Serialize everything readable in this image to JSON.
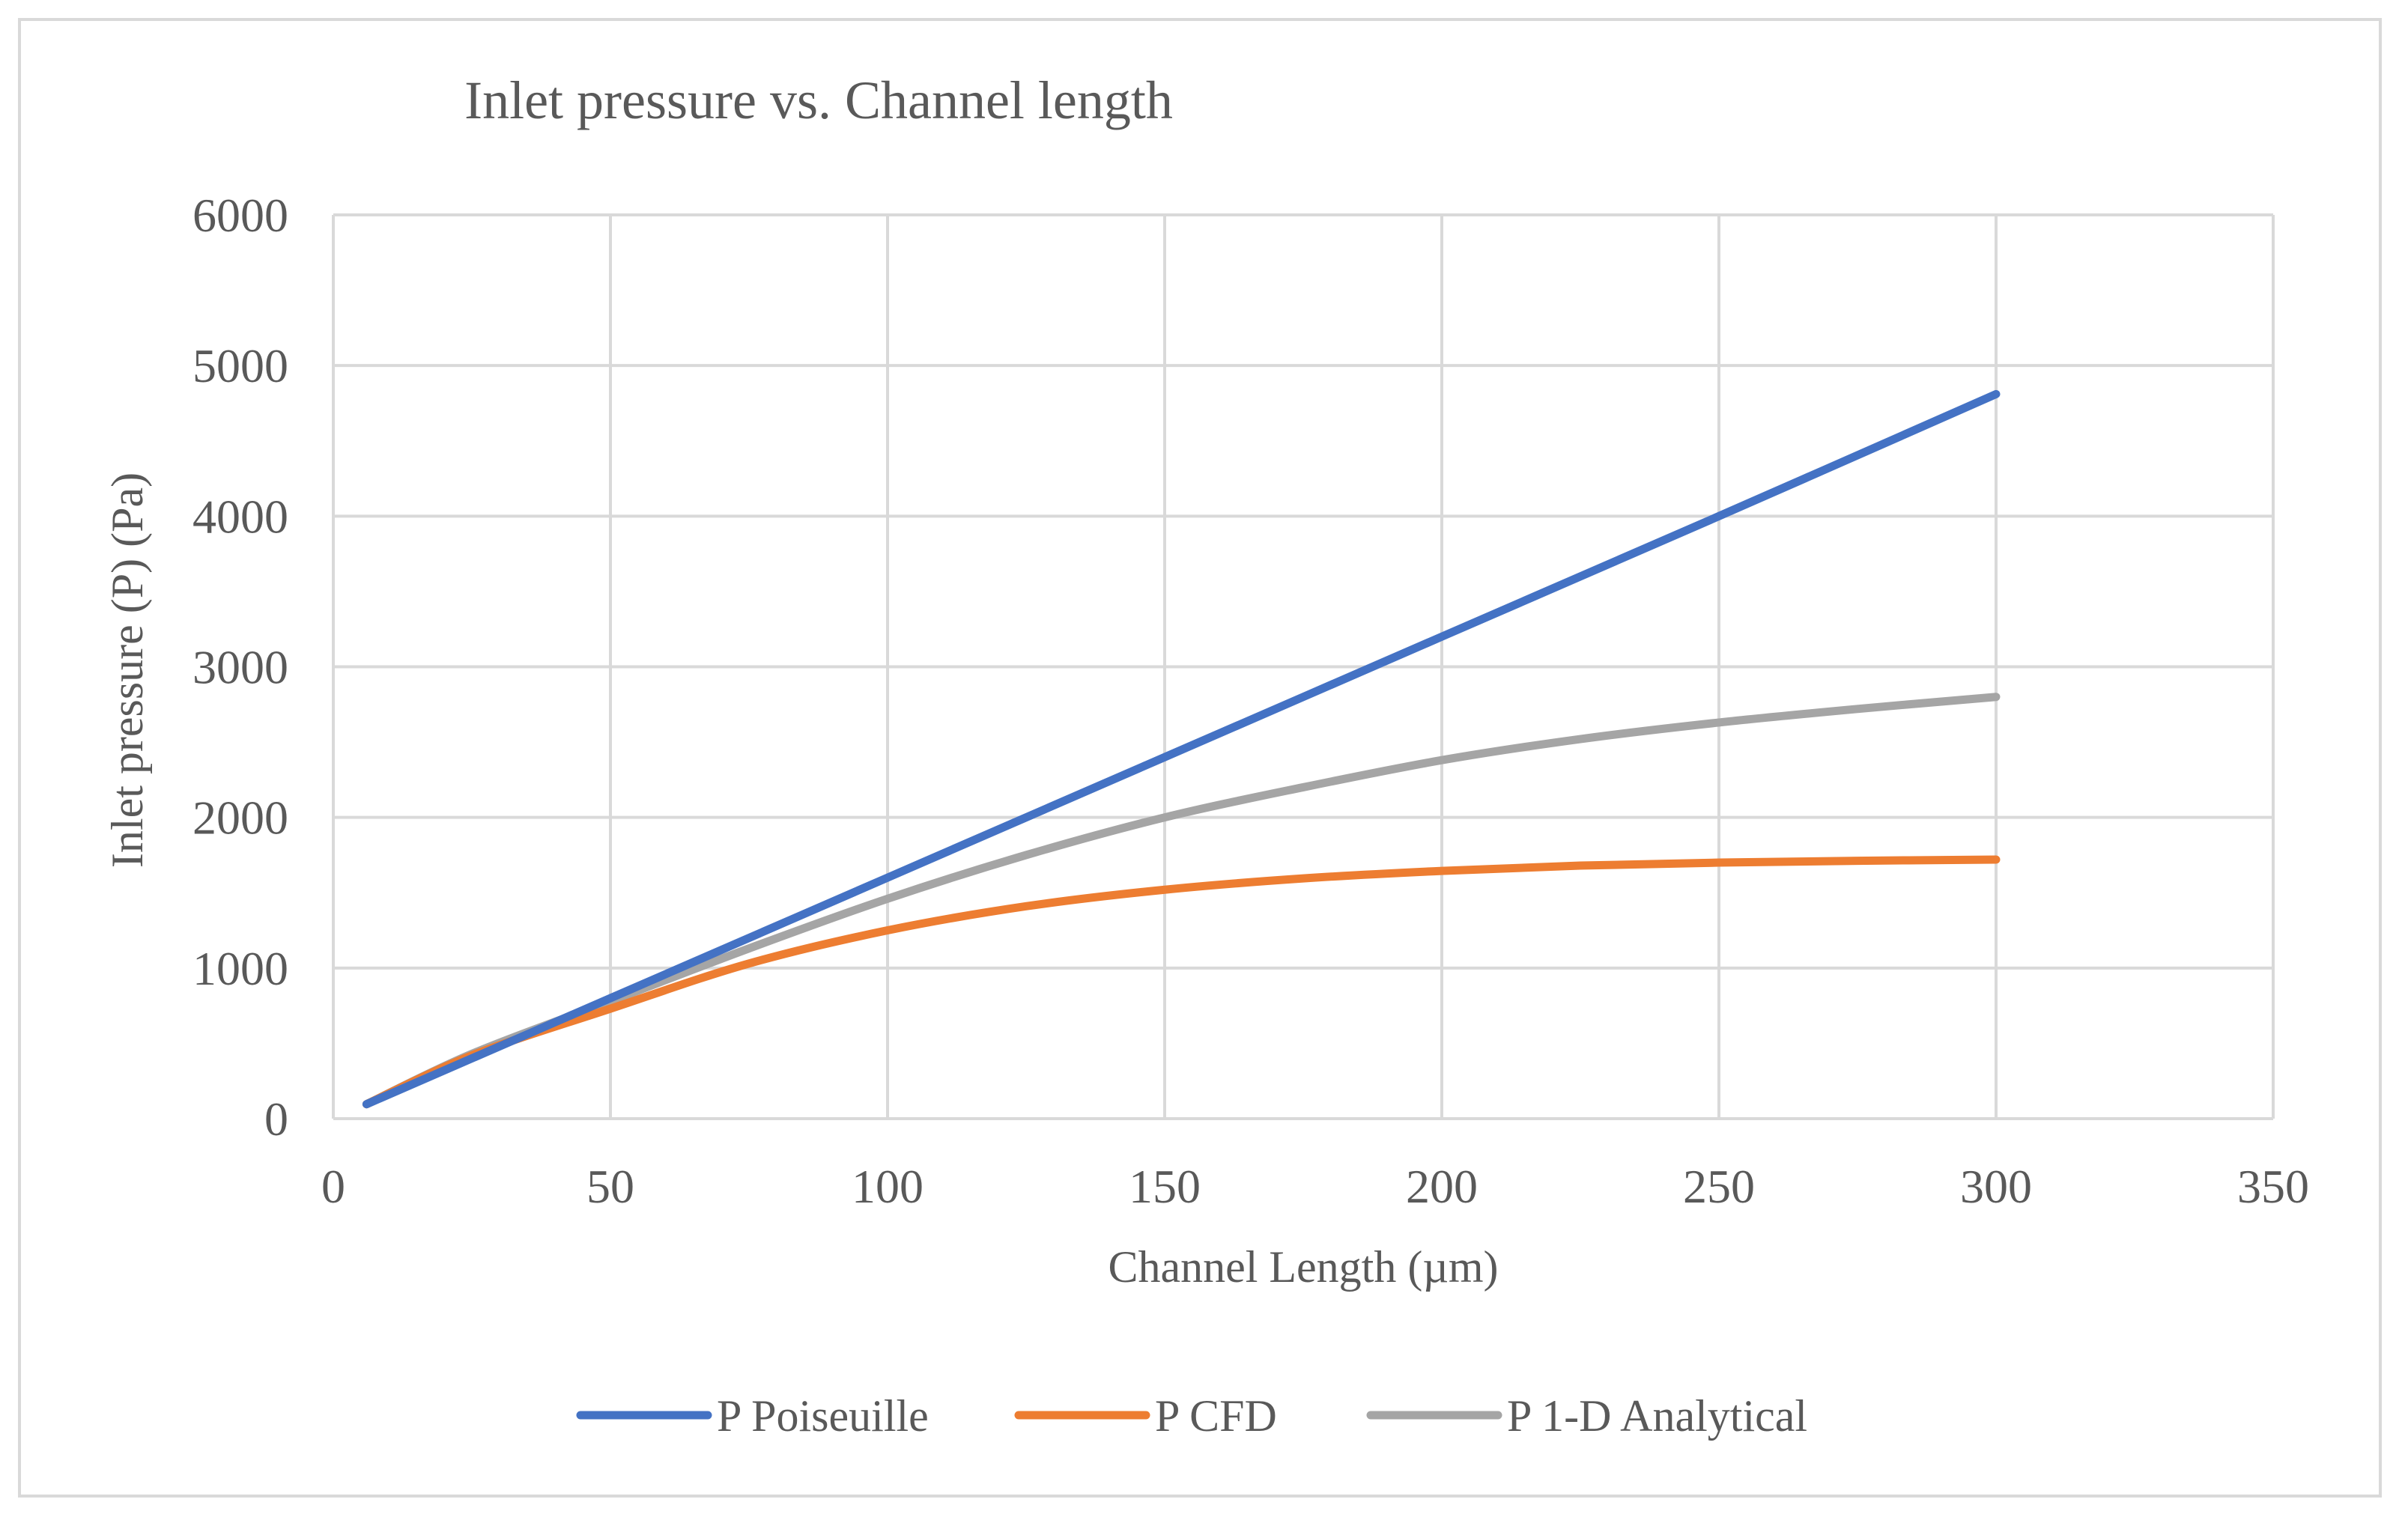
{
  "chart_data": {
    "type": "line",
    "title": "Inlet pressure vs. Channel length",
    "xlabel": "Channel Length (µm)",
    "ylabel": "Inlet pressure (P) (Pa)",
    "xlim": [
      0,
      350
    ],
    "ylim": [
      0,
      6000
    ],
    "xticks": [
      0,
      50,
      100,
      150,
      200,
      250,
      300,
      350
    ],
    "yticks": [
      0,
      1000,
      2000,
      3000,
      4000,
      5000,
      6000
    ],
    "grid": true,
    "legend_position": "bottom",
    "series": [
      {
        "name": "P Poiseuille",
        "color": "#4472c4",
        "x": [
          6,
          50,
          100,
          150,
          200,
          250,
          300
        ],
        "y": [
          96,
          800,
          1600,
          2400,
          3200,
          4000,
          4810
        ]
      },
      {
        "name": "P CFD",
        "color": "#ed7d31",
        "x": [
          6,
          25,
          50,
          75,
          100,
          125,
          150,
          175,
          200,
          225,
          250,
          275,
          300
        ],
        "y": [
          96,
          420,
          730,
          1030,
          1250,
          1410,
          1520,
          1595,
          1645,
          1680,
          1700,
          1712,
          1720
        ]
      },
      {
        "name": "P 1-D Analytical",
        "color": "#a5a5a5",
        "x": [
          6,
          25,
          50,
          75,
          100,
          125,
          150,
          175,
          200,
          225,
          250,
          275,
          300
        ],
        "y": [
          96,
          430,
          780,
          1130,
          1460,
          1750,
          2000,
          2200,
          2380,
          2520,
          2630,
          2720,
          2800
        ]
      }
    ]
  }
}
